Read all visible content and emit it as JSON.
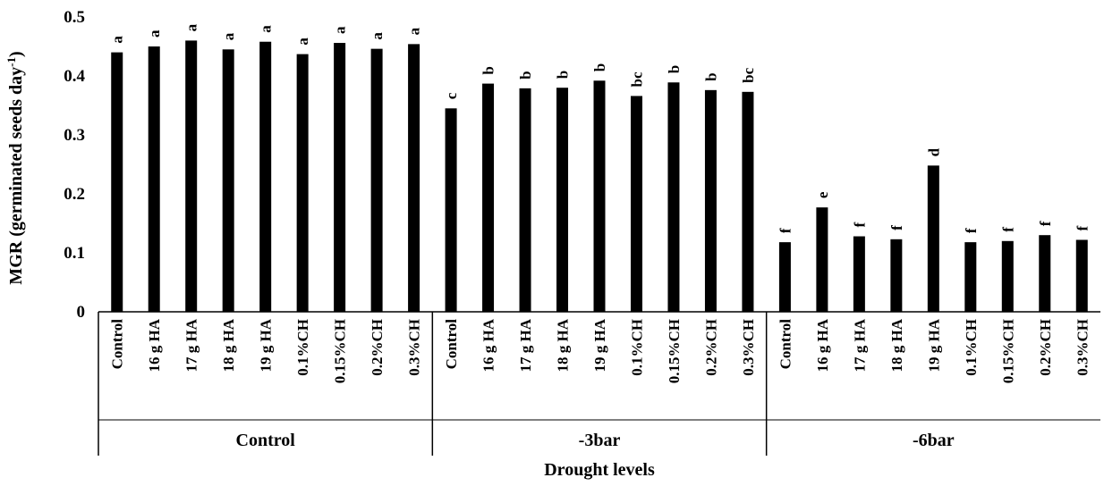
{
  "chart_data": {
    "type": "bar",
    "ylabel": "MGR (germinated seeds day",
    "ylabel_sup": "-1",
    "ylabel_close": ")",
    "xlabel": "Drought levels",
    "ylim": [
      0,
      0.5
    ],
    "yticks": [
      "0",
      "0.1",
      "0.2",
      "0.3",
      "0.4",
      "0.5"
    ],
    "groups": [
      {
        "name": "Control",
        "categories": [
          "Control",
          "16 g HA",
          "17 g HA",
          "18 g HA",
          "19 g HA",
          "0.1%CH",
          "0.15%CH",
          "0.2%CH",
          "0.3%CH"
        ],
        "values": [
          0.44,
          0.45,
          0.46,
          0.445,
          0.458,
          0.437,
          0.456,
          0.446,
          0.454
        ],
        "letters": [
          "a",
          "a",
          "a",
          "a",
          "a",
          "a",
          "a",
          "a",
          "a"
        ]
      },
      {
        "name": "-3bar",
        "categories": [
          "Control",
          "16 g HA",
          "17 g HA",
          "18 g HA",
          "19 g HA",
          "0.1%CH",
          "0.15%CH",
          "0.2%CH",
          "0.3%CH"
        ],
        "values": [
          0.345,
          0.387,
          0.379,
          0.38,
          0.392,
          0.366,
          0.389,
          0.376,
          0.373
        ],
        "letters": [
          "c",
          "b",
          "b",
          "b",
          "b",
          "bc",
          "b",
          "b",
          "bc"
        ]
      },
      {
        "name": "-6bar",
        "categories": [
          "Control",
          "16 g HA",
          "17 g HA",
          "18 g HA",
          "19 g HA",
          "0.1%CH",
          "0.15%CH",
          "0.2%CH",
          "0.3%CH"
        ],
        "values": [
          0.118,
          0.177,
          0.128,
          0.123,
          0.248,
          0.118,
          0.12,
          0.13,
          0.122
        ],
        "letters": [
          "f",
          "e",
          "f",
          "f",
          "d",
          "f",
          "f",
          "f",
          "f"
        ]
      }
    ],
    "bar_color": "#000000",
    "grid": false,
    "legend": "none"
  }
}
